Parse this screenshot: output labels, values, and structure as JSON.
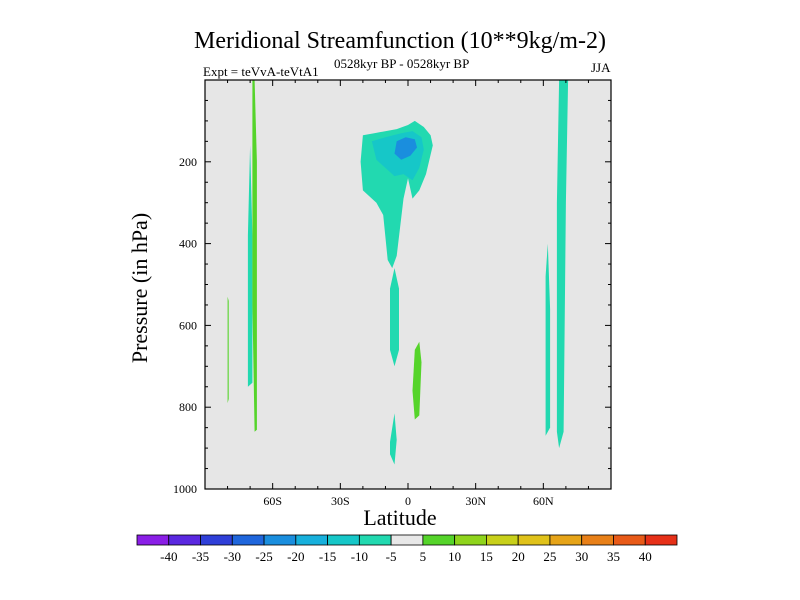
{
  "chart_data": {
    "type": "heatmap",
    "title": "Meridional Streamfunction (10**9kg/m-2)",
    "experiment": "Expt = teVvA-teVtA1",
    "period": "0528kyr BP - 0528kyr BP",
    "season": "JJA",
    "xlabel": "Latitude",
    "ylabel": "Pressure (in hPa)",
    "xlim": [
      -90,
      90
    ],
    "ylim": [
      1000,
      0
    ],
    "x_ticks": [
      {
        "value": -60,
        "label": "60S"
      },
      {
        "value": -30,
        "label": "30S"
      },
      {
        "value": 0,
        "label": "0"
      },
      {
        "value": 30,
        "label": "30N"
      },
      {
        "value": 60,
        "label": "60N"
      }
    ],
    "y_ticks": [
      {
        "value": 200,
        "label": "200"
      },
      {
        "value": 400,
        "label": "400"
      },
      {
        "value": 600,
        "label": "600"
      },
      {
        "value": 800,
        "label": "800"
      },
      {
        "value": 1000,
        "label": "1000"
      }
    ],
    "colorbar": {
      "levels": [
        "-40",
        "-35",
        "-30",
        "-25",
        "-20",
        "-15",
        "-10",
        "-5",
        "5",
        "10",
        "15",
        "20",
        "25",
        "30",
        "35",
        "40"
      ],
      "colors": [
        "#8a1ee6",
        "#5a28e0",
        "#2f3fd8",
        "#1f66dc",
        "#1a8ede",
        "#17b0dc",
        "#16c7c8",
        "#22d9b0",
        "#e8e8e8",
        "#55d42a",
        "#8fd41c",
        "#c8d01a",
        "#e0c21a",
        "#e6a418",
        "#e88018",
        "#e85a18",
        "#e63018"
      ]
    },
    "contours": [
      {
        "name": "upper-equatorial-cell",
        "level": "-5",
        "color": "#22d9b0",
        "points": [
          [
            -20,
            135
          ],
          [
            -15,
            130
          ],
          [
            -5,
            120
          ],
          [
            0,
            110
          ],
          [
            3,
            100
          ],
          [
            7,
            115
          ],
          [
            10,
            135
          ],
          [
            11,
            160
          ],
          [
            8,
            230
          ],
          [
            5,
            270
          ],
          [
            2,
            290
          ],
          [
            0,
            240
          ],
          [
            -2,
            290
          ],
          [
            -5,
            430
          ],
          [
            -7,
            460
          ],
          [
            -9,
            440
          ],
          [
            -11,
            330
          ],
          [
            -14,
            300
          ],
          [
            -20,
            270
          ],
          [
            -21,
            200
          ]
        ]
      },
      {
        "name": "upper-equatorial-cell-inner",
        "level": "-10",
        "color": "#16c7c8",
        "points": [
          [
            -16,
            150
          ],
          [
            -10,
            140
          ],
          [
            -3,
            130
          ],
          [
            2,
            125
          ],
          [
            6,
            140
          ],
          [
            7,
            170
          ],
          [
            5,
            215
          ],
          [
            2,
            245
          ],
          [
            -2,
            230
          ],
          [
            -6,
            235
          ],
          [
            -10,
            215
          ],
          [
            -14,
            195
          ]
        ]
      },
      {
        "name": "upper-equatorial-cell-core",
        "level": "-15",
        "color": "#1a8ede",
        "points": [
          [
            -5,
            150
          ],
          [
            -1,
            140
          ],
          [
            3,
            145
          ],
          [
            4,
            165
          ],
          [
            1,
            185
          ],
          [
            -3,
            195
          ],
          [
            -6,
            180
          ]
        ]
      },
      {
        "name": "equatorial-midlevel-strip",
        "level": "-5",
        "color": "#22d9b0",
        "points": [
          [
            -8,
            510
          ],
          [
            -6,
            460
          ],
          [
            -4,
            510
          ],
          [
            -4,
            660
          ],
          [
            -6,
            700
          ],
          [
            -8,
            660
          ]
        ]
      },
      {
        "name": "equatorial-lower-strip",
        "level": "-5",
        "color": "#22d9b0",
        "points": [
          [
            -8,
            885
          ],
          [
            -6,
            815
          ],
          [
            -5,
            880
          ],
          [
            -6,
            940
          ],
          [
            -8,
            915
          ]
        ]
      },
      {
        "name": "equatorial-positive-strip",
        "level": "5",
        "color": "#55d42a",
        "points": [
          [
            3,
            660
          ],
          [
            5,
            640
          ],
          [
            6,
            690
          ],
          [
            5,
            820
          ],
          [
            3,
            830
          ],
          [
            2,
            760
          ]
        ]
      },
      {
        "name": "southern-polar-strip-neg",
        "level": "-5",
        "color": "#22d9b0",
        "points": [
          [
            -71,
            380
          ],
          [
            -70,
            160
          ],
          [
            -69,
            380
          ],
          [
            -69,
            740
          ],
          [
            -71,
            750
          ]
        ]
      },
      {
        "name": "southern-polar-strip-pos",
        "level": "5",
        "color": "#55d42a",
        "points": [
          [
            -69,
            0
          ],
          [
            -68,
            0
          ],
          [
            -67,
            200
          ],
          [
            -67,
            855
          ],
          [
            -68,
            860
          ],
          [
            -69,
            550
          ]
        ]
      },
      {
        "name": "southern-polar-strip-pos-2",
        "level": "5",
        "color": "#55d42a",
        "points": [
          [
            -80,
            530
          ],
          [
            -79.5,
            540
          ],
          [
            -79.5,
            780
          ],
          [
            -80,
            790
          ]
        ]
      },
      {
        "name": "northern-polar-strip",
        "level": "-5",
        "color": "#22d9b0",
        "points": [
          [
            67,
            0
          ],
          [
            71,
            0
          ],
          [
            70,
            300
          ],
          [
            69,
            860
          ],
          [
            67,
            900
          ],
          [
            66,
            860
          ],
          [
            66,
            300
          ]
        ]
      },
      {
        "name": "northern-polar-strip-2",
        "level": "-5",
        "color": "#22d9b0",
        "points": [
          [
            61,
            480
          ],
          [
            62,
            400
          ],
          [
            63,
            560
          ],
          [
            63,
            850
          ],
          [
            61,
            870
          ],
          [
            61,
            700
          ]
        ]
      }
    ]
  }
}
